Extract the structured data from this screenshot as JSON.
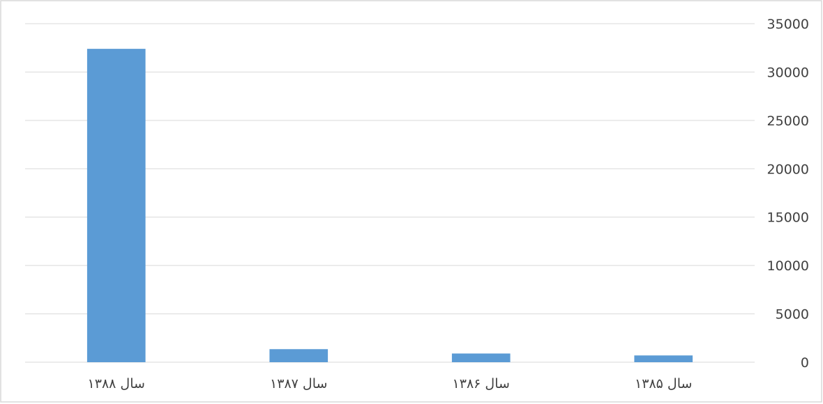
{
  "chart_data": {
    "type": "bar",
    "categories": [
      "سال ۱۳۸۸",
      "سال ۱۳۸۷",
      "سال ۱۳۸۶",
      "سال ۱۳۸۵"
    ],
    "values": [
      32400,
      1350,
      900,
      700
    ],
    "y_ticks": [
      "0",
      "5000",
      "10000",
      "15000",
      "20000",
      "25000",
      "30000",
      "35000"
    ],
    "ylim": [
      0,
      35000
    ],
    "y_axis_side": "right",
    "grid": true,
    "legend": "none",
    "bar_color": "#5B9BD5",
    "grid_color": "#D9D9D9",
    "text_color": "#404040",
    "border_color": "#D9D9D9"
  }
}
